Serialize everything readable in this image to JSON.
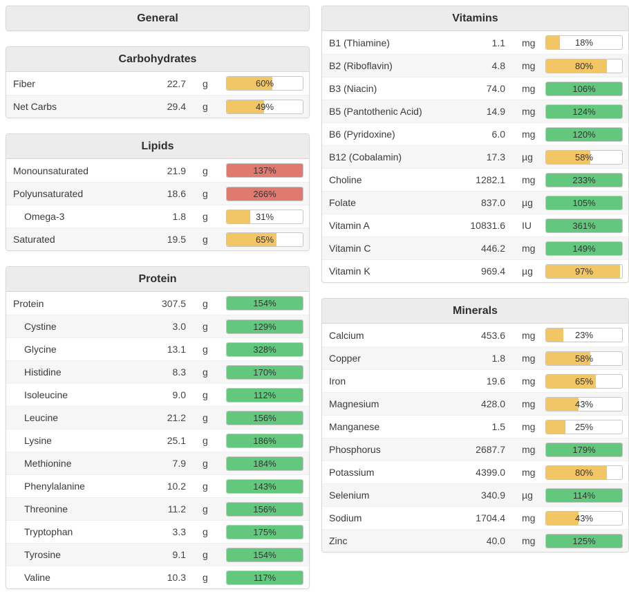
{
  "colors": {
    "yellow": "#f3c665",
    "green": "#63c87e",
    "red": "#e07a70"
  },
  "panels": {
    "general": {
      "title": "General",
      "rows": []
    },
    "carbohydrates": {
      "title": "Carbohydrates",
      "rows": [
        {
          "label": "Fiber",
          "value": "22.7",
          "unit": "g",
          "percent": 60,
          "percent_label": "60%",
          "color": "yellow",
          "indent": false
        },
        {
          "label": "Net Carbs",
          "value": "29.4",
          "unit": "g",
          "percent": 49,
          "percent_label": "49%",
          "color": "yellow",
          "indent": false
        }
      ]
    },
    "lipids": {
      "title": "Lipids",
      "rows": [
        {
          "label": "Monounsaturated",
          "value": "21.9",
          "unit": "g",
          "percent": 137,
          "percent_label": "137%",
          "color": "red",
          "indent": false
        },
        {
          "label": "Polyunsaturated",
          "value": "18.6",
          "unit": "g",
          "percent": 266,
          "percent_label": "266%",
          "color": "red",
          "indent": false
        },
        {
          "label": "Omega-3",
          "value": "1.8",
          "unit": "g",
          "percent": 31,
          "percent_label": "31%",
          "color": "yellow",
          "indent": true
        },
        {
          "label": "Saturated",
          "value": "19.5",
          "unit": "g",
          "percent": 65,
          "percent_label": "65%",
          "color": "yellow",
          "indent": false
        }
      ]
    },
    "protein": {
      "title": "Protein",
      "rows": [
        {
          "label": "Protein",
          "value": "307.5",
          "unit": "g",
          "percent": 154,
          "percent_label": "154%",
          "color": "green",
          "indent": false
        },
        {
          "label": "Cystine",
          "value": "3.0",
          "unit": "g",
          "percent": 129,
          "percent_label": "129%",
          "color": "green",
          "indent": true
        },
        {
          "label": "Glycine",
          "value": "13.1",
          "unit": "g",
          "percent": 328,
          "percent_label": "328%",
          "color": "green",
          "indent": true
        },
        {
          "label": "Histidine",
          "value": "8.3",
          "unit": "g",
          "percent": 170,
          "percent_label": "170%",
          "color": "green",
          "indent": true
        },
        {
          "label": "Isoleucine",
          "value": "9.0",
          "unit": "g",
          "percent": 112,
          "percent_label": "112%",
          "color": "green",
          "indent": true
        },
        {
          "label": "Leucine",
          "value": "21.2",
          "unit": "g",
          "percent": 156,
          "percent_label": "156%",
          "color": "green",
          "indent": true
        },
        {
          "label": "Lysine",
          "value": "25.1",
          "unit": "g",
          "percent": 186,
          "percent_label": "186%",
          "color": "green",
          "indent": true
        },
        {
          "label": "Methionine",
          "value": "7.9",
          "unit": "g",
          "percent": 184,
          "percent_label": "184%",
          "color": "green",
          "indent": true
        },
        {
          "label": "Phenylalanine",
          "value": "10.2",
          "unit": "g",
          "percent": 143,
          "percent_label": "143%",
          "color": "green",
          "indent": true
        },
        {
          "label": "Threonine",
          "value": "11.2",
          "unit": "g",
          "percent": 156,
          "percent_label": "156%",
          "color": "green",
          "indent": true
        },
        {
          "label": "Tryptophan",
          "value": "3.3",
          "unit": "g",
          "percent": 175,
          "percent_label": "175%",
          "color": "green",
          "indent": true
        },
        {
          "label": "Tyrosine",
          "value": "9.1",
          "unit": "g",
          "percent": 154,
          "percent_label": "154%",
          "color": "green",
          "indent": true
        },
        {
          "label": "Valine",
          "value": "10.3",
          "unit": "g",
          "percent": 117,
          "percent_label": "117%",
          "color": "green",
          "indent": true
        }
      ]
    },
    "vitamins": {
      "title": "Vitamins",
      "rows": [
        {
          "label": "B1 (Thiamine)",
          "value": "1.1",
          "unit": "mg",
          "percent": 18,
          "percent_label": "18%",
          "color": "yellow",
          "indent": false
        },
        {
          "label": "B2 (Riboflavin)",
          "value": "4.8",
          "unit": "mg",
          "percent": 80,
          "percent_label": "80%",
          "color": "yellow",
          "indent": false
        },
        {
          "label": "B3 (Niacin)",
          "value": "74.0",
          "unit": "mg",
          "percent": 106,
          "percent_label": "106%",
          "color": "green",
          "indent": false
        },
        {
          "label": "B5 (Pantothenic Acid)",
          "value": "14.9",
          "unit": "mg",
          "percent": 124,
          "percent_label": "124%",
          "color": "green",
          "indent": false
        },
        {
          "label": "B6 (Pyridoxine)",
          "value": "6.0",
          "unit": "mg",
          "percent": 120,
          "percent_label": "120%",
          "color": "green",
          "indent": false
        },
        {
          "label": "B12 (Cobalamin)",
          "value": "17.3",
          "unit": "µg",
          "percent": 58,
          "percent_label": "58%",
          "color": "yellow",
          "indent": false
        },
        {
          "label": "Choline",
          "value": "1282.1",
          "unit": "mg",
          "percent": 233,
          "percent_label": "233%",
          "color": "green",
          "indent": false
        },
        {
          "label": "Folate",
          "value": "837.0",
          "unit": "µg",
          "percent": 105,
          "percent_label": "105%",
          "color": "green",
          "indent": false
        },
        {
          "label": "Vitamin A",
          "value": "10831.6",
          "unit": "IU",
          "percent": 361,
          "percent_label": "361%",
          "color": "green",
          "indent": false
        },
        {
          "label": "Vitamin C",
          "value": "446.2",
          "unit": "mg",
          "percent": 149,
          "percent_label": "149%",
          "color": "green",
          "indent": false
        },
        {
          "label": "Vitamin K",
          "value": "969.4",
          "unit": "µg",
          "percent": 97,
          "percent_label": "97%",
          "color": "yellow",
          "indent": false
        }
      ]
    },
    "minerals": {
      "title": "Minerals",
      "rows": [
        {
          "label": "Calcium",
          "value": "453.6",
          "unit": "mg",
          "percent": 23,
          "percent_label": "23%",
          "color": "yellow",
          "indent": false
        },
        {
          "label": "Copper",
          "value": "1.8",
          "unit": "mg",
          "percent": 58,
          "percent_label": "58%",
          "color": "yellow",
          "indent": false
        },
        {
          "label": "Iron",
          "value": "19.6",
          "unit": "mg",
          "percent": 65,
          "percent_label": "65%",
          "color": "yellow",
          "indent": false
        },
        {
          "label": "Magnesium",
          "value": "428.0",
          "unit": "mg",
          "percent": 43,
          "percent_label": "43%",
          "color": "yellow",
          "indent": false
        },
        {
          "label": "Manganese",
          "value": "1.5",
          "unit": "mg",
          "percent": 25,
          "percent_label": "25%",
          "color": "yellow",
          "indent": false
        },
        {
          "label": "Phosphorus",
          "value": "2687.7",
          "unit": "mg",
          "percent": 179,
          "percent_label": "179%",
          "color": "green",
          "indent": false
        },
        {
          "label": "Potassium",
          "value": "4399.0",
          "unit": "mg",
          "percent": 80,
          "percent_label": "80%",
          "color": "yellow",
          "indent": false
        },
        {
          "label": "Selenium",
          "value": "340.9",
          "unit": "µg",
          "percent": 114,
          "percent_label": "114%",
          "color": "green",
          "indent": false
        },
        {
          "label": "Sodium",
          "value": "1704.4",
          "unit": "mg",
          "percent": 43,
          "percent_label": "43%",
          "color": "yellow",
          "indent": false
        },
        {
          "label": "Zinc",
          "value": "40.0",
          "unit": "mg",
          "percent": 125,
          "percent_label": "125%",
          "color": "green",
          "indent": false
        }
      ]
    }
  }
}
